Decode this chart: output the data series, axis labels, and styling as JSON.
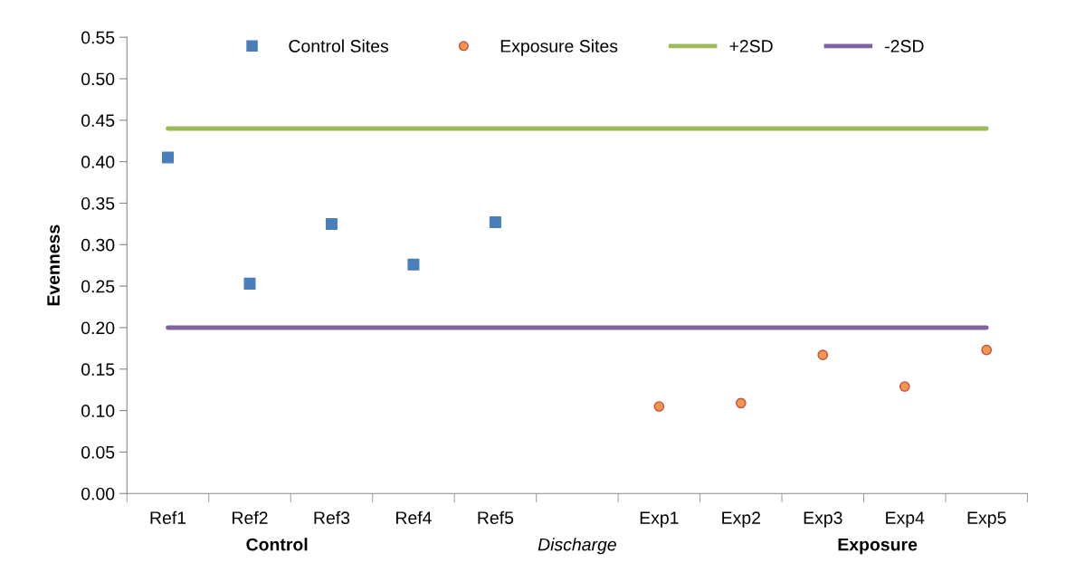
{
  "chart_data": {
    "type": "scatter",
    "ylabel": "Evenness",
    "categories": [
      "Ref1",
      "Ref2",
      "Ref3",
      "Ref4",
      "Ref5",
      null,
      "Exp1",
      "Exp2",
      "Exp3",
      "Exp4",
      "Exp5"
    ],
    "series": [
      {
        "name": "Control Sites",
        "marker": "square",
        "color": "#4a7ebb",
        "values": [
          0.405,
          0.253,
          0.325,
          0.276,
          0.327,
          null,
          null,
          null,
          null,
          null,
          null
        ]
      },
      {
        "name": "Exposure Sites",
        "marker": "circle",
        "color": "#f79646",
        "values": [
          null,
          null,
          null,
          null,
          null,
          null,
          0.105,
          0.109,
          0.167,
          0.129,
          0.173
        ]
      },
      {
        "name": "+2SD",
        "type": "line",
        "marker": "none",
        "color": "#9bbb59",
        "values": [
          0.44,
          0.44,
          0.44,
          0.44,
          0.44,
          0.44,
          0.44,
          0.44,
          0.44,
          0.44,
          0.44
        ]
      },
      {
        "name": "-2SD",
        "type": "line",
        "marker": "none",
        "color": "#8064a2",
        "values": [
          0.2,
          0.2,
          0.2,
          0.2,
          0.2,
          0.2,
          0.2,
          0.2,
          0.2,
          0.2,
          0.2
        ]
      }
    ],
    "annotations": [
      "Control",
      "Discharge",
      "Exposure"
    ],
    "ylim": [
      0,
      0.55
    ],
    "yticks": [
      {
        "value": 0,
        "label": "0.00"
      },
      {
        "value": 0.05,
        "label": "0.05"
      },
      {
        "value": 0.1,
        "label": "0.10"
      },
      {
        "value": 0.15,
        "label": "0.15"
      },
      {
        "value": 0.2,
        "label": "0.20"
      },
      {
        "value": 0.25,
        "label": "0.25"
      },
      {
        "value": 0.3,
        "label": "0.30"
      },
      {
        "value": 0.35,
        "label": "0.35"
      },
      {
        "value": 0.4,
        "label": "0.40"
      },
      {
        "value": 0.45,
        "label": "0.45"
      },
      {
        "value": 0.5,
        "label": "0.50"
      },
      {
        "value": 0.55,
        "label": "0.55"
      }
    ],
    "grid": false,
    "legend": "top"
  }
}
